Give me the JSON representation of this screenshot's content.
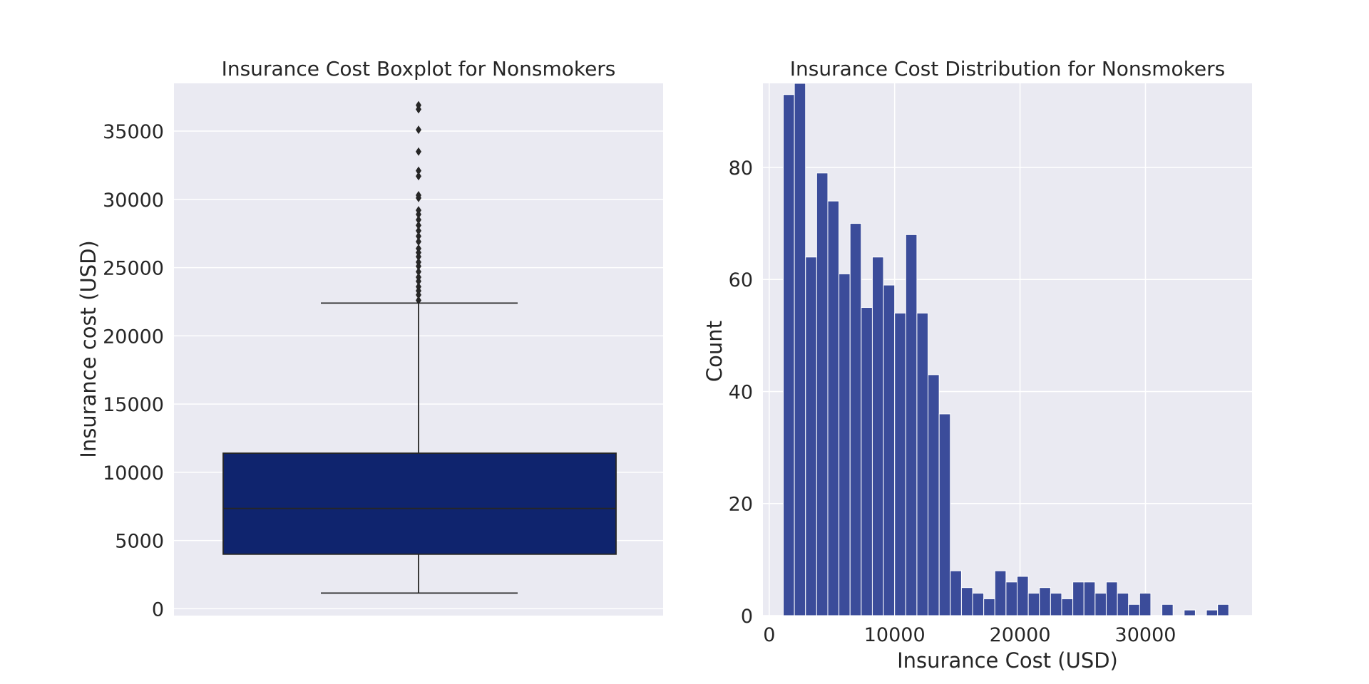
{
  "chart_data": [
    {
      "type": "box",
      "title": "Insurance Cost Boxplot for Nonsmokers",
      "xlabel": "",
      "ylabel": "Insurance cost (USD)",
      "ylim": [
        -500,
        38500
      ],
      "yticks": [
        0,
        5000,
        10000,
        15000,
        20000,
        25000,
        30000,
        35000
      ],
      "ytick_labels": [
        "0",
        "5000",
        "10000",
        "15000",
        "20000",
        "25000",
        "30000",
        "35000"
      ],
      "grid": true,
      "box": {
        "whisker_low": 1150,
        "q1": 4000,
        "median": 7350,
        "q3": 11400,
        "whisker_high": 22400,
        "outliers": [
          22600,
          23000,
          23300,
          23600,
          24000,
          24300,
          24700,
          25100,
          25400,
          25800,
          26100,
          26400,
          26900,
          27300,
          27700,
          28100,
          28500,
          28900,
          29200,
          30100,
          30300,
          31700,
          32100,
          33500,
          35100,
          36600,
          36900
        ]
      },
      "colors": {
        "box": "#0f246e",
        "line": "#262626",
        "background": "#eaeaf2",
        "grid": "#ffffff"
      }
    },
    {
      "type": "bar",
      "title": "Insurance Cost Distribution for Nonsmokers",
      "xlabel": "Insurance Cost (USD)",
      "ylabel": "Count",
      "xlim": [
        -500,
        38500
      ],
      "ylim": [
        0,
        95
      ],
      "xticks": [
        0,
        10000,
        20000,
        30000
      ],
      "xtick_labels": [
        "0",
        "10000",
        "20000",
        "30000"
      ],
      "yticks": [
        0,
        20,
        40,
        60,
        80
      ],
      "ytick_labels": [
        "0",
        "20",
        "40",
        "60",
        "80"
      ],
      "grid": true,
      "bin_start": 1120,
      "bin_width": 888,
      "values": [
        93,
        95,
        64,
        79,
        74,
        61,
        70,
        55,
        64,
        59,
        54,
        68,
        54,
        43,
        36,
        8,
        5,
        4,
        3,
        8,
        6,
        7,
        4,
        5,
        4,
        3,
        6,
        6,
        4,
        6,
        4,
        2,
        4,
        0,
        2,
        0,
        1,
        0,
        1,
        2
      ],
      "colors": {
        "bar": "#3b4c9a",
        "bar_edge": "#ffffff",
        "background": "#eaeaf2",
        "grid": "#ffffff"
      }
    }
  ]
}
